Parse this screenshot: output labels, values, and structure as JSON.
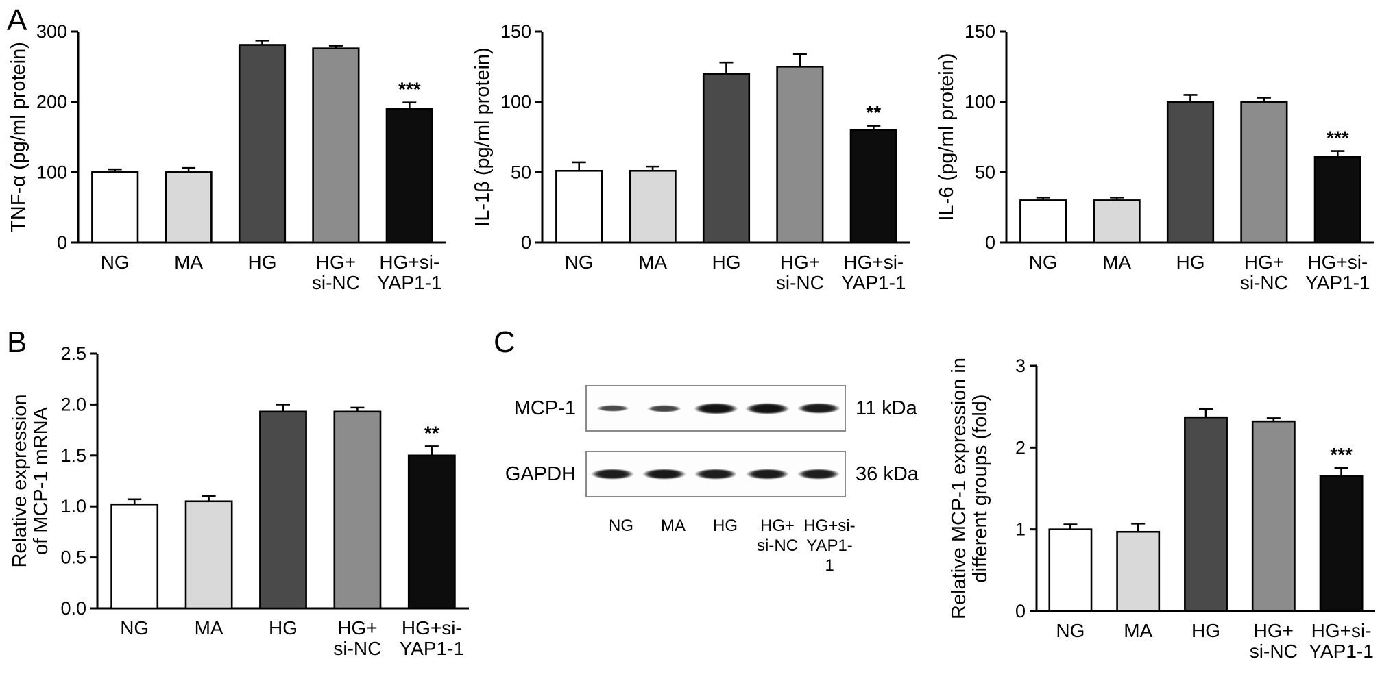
{
  "panels": [
    {
      "label": "A"
    },
    {
      "label": "B"
    },
    {
      "label": "C"
    }
  ],
  "bar_colors": [
    "#ffffff",
    "#d9d9d9",
    "#4a4a4a",
    "#8c8c8c",
    "#0d0d0d"
  ],
  "chart_data": [
    {
      "id": "tnf-alpha",
      "type": "bar",
      "panel": "A",
      "ylabel": [
        "TNF-α (pg/ml protein)"
      ],
      "ylim": [
        0,
        300
      ],
      "yticks": [
        0,
        100,
        200,
        300
      ],
      "ytick_labels": [
        "0",
        "100",
        "200",
        "300"
      ],
      "categories": [
        [
          "NG"
        ],
        [
          "MA"
        ],
        [
          "HG"
        ],
        [
          "HG+",
          "si-NC"
        ],
        [
          "HG+si-",
          "YAP1-1"
        ]
      ],
      "values": [
        100,
        100,
        281,
        276,
        190
      ],
      "errors": [
        4,
        6,
        6,
        4,
        9
      ],
      "annotations": [
        "",
        "",
        "",
        "",
        "***"
      ],
      "grid": false,
      "legend": false
    },
    {
      "id": "il-1beta",
      "type": "bar",
      "panel": "A",
      "ylabel": [
        "IL-1β (pg/ml protein)"
      ],
      "ylim": [
        0,
        150
      ],
      "yticks": [
        0,
        50,
        100,
        150
      ],
      "ytick_labels": [
        "0",
        "50",
        "100",
        "150"
      ],
      "categories": [
        [
          "NG"
        ],
        [
          "MA"
        ],
        [
          "HG"
        ],
        [
          "HG+",
          "si-NC"
        ],
        [
          "HG+si-",
          "YAP1-1"
        ]
      ],
      "values": [
        51,
        51,
        120,
        125,
        80
      ],
      "errors": [
        6,
        3,
        8,
        9,
        3
      ],
      "annotations": [
        "",
        "",
        "",
        "",
        "**"
      ],
      "grid": false,
      "legend": false
    },
    {
      "id": "il-6",
      "type": "bar",
      "panel": "A",
      "ylabel": [
        "IL-6 (pg/ml protein)"
      ],
      "ylim": [
        0,
        150
      ],
      "yticks": [
        0,
        50,
        100,
        150
      ],
      "ytick_labels": [
        "0",
        "50",
        "100",
        "150"
      ],
      "categories": [
        [
          "NG"
        ],
        [
          "MA"
        ],
        [
          "HG"
        ],
        [
          "HG+",
          "si-NC"
        ],
        [
          "HG+si-",
          "YAP1-1"
        ]
      ],
      "values": [
        30,
        30,
        100,
        100,
        61
      ],
      "errors": [
        2,
        2,
        5,
        3,
        4
      ],
      "annotations": [
        "",
        "",
        "",
        "",
        "***"
      ],
      "grid": false,
      "legend": false
    },
    {
      "id": "mcp1-mrna",
      "type": "bar",
      "panel": "B",
      "ylabel": [
        "Relative expression",
        "of MCP-1 mRNA"
      ],
      "ylim": [
        0,
        2.5
      ],
      "yticks": [
        0,
        0.5,
        1.0,
        1.5,
        2.0,
        2.5
      ],
      "ytick_labels": [
        "0.0",
        "0.5",
        "1.0",
        "1.5",
        "2.0",
        "2.5"
      ],
      "categories": [
        [
          "NG"
        ],
        [
          "MA"
        ],
        [
          "HG"
        ],
        [
          "HG+",
          "si-NC"
        ],
        [
          "HG+si-",
          "YAP1-1"
        ]
      ],
      "values": [
        1.02,
        1.05,
        1.93,
        1.93,
        1.5
      ],
      "errors": [
        0.05,
        0.05,
        0.07,
        0.04,
        0.09
      ],
      "annotations": [
        "",
        "",
        "",
        "",
        "**"
      ],
      "grid": false,
      "legend": false
    },
    {
      "id": "mcp1-protein",
      "type": "bar",
      "panel": "C",
      "ylabel": [
        "Relative MCP-1 expression in",
        "different groups (fold)"
      ],
      "ylim": [
        0,
        3
      ],
      "yticks": [
        0,
        1,
        2,
        3
      ],
      "ytick_labels": [
        "0",
        "1",
        "2",
        "3"
      ],
      "categories": [
        [
          "NG"
        ],
        [
          "MA"
        ],
        [
          "HG"
        ],
        [
          "HG+",
          "si-NC"
        ],
        [
          "HG+si-",
          "YAP1-1"
        ]
      ],
      "values": [
        1.0,
        0.97,
        2.37,
        2.32,
        1.65
      ],
      "errors": [
        0.06,
        0.1,
        0.1,
        0.04,
        0.1
      ],
      "annotations": [
        "",
        "",
        "",
        "",
        "***"
      ],
      "grid": false,
      "legend": false
    }
  ],
  "blot": {
    "lanes": [
      [
        "NG"
      ],
      [
        "MA"
      ],
      [
        "HG"
      ],
      [
        "HG+",
        "si-NC"
      ],
      [
        "HG+si-",
        "YAP1-1"
      ]
    ],
    "rows": [
      {
        "label": "MCP-1",
        "kda": "11 kDa",
        "band_intensities": [
          0.32,
          0.38,
          0.97,
          0.97,
          0.88
        ]
      },
      {
        "label": "GAPDH",
        "kda": "36 kDa",
        "band_intensities": [
          0.88,
          0.92,
          0.85,
          0.88,
          0.85
        ]
      }
    ]
  }
}
